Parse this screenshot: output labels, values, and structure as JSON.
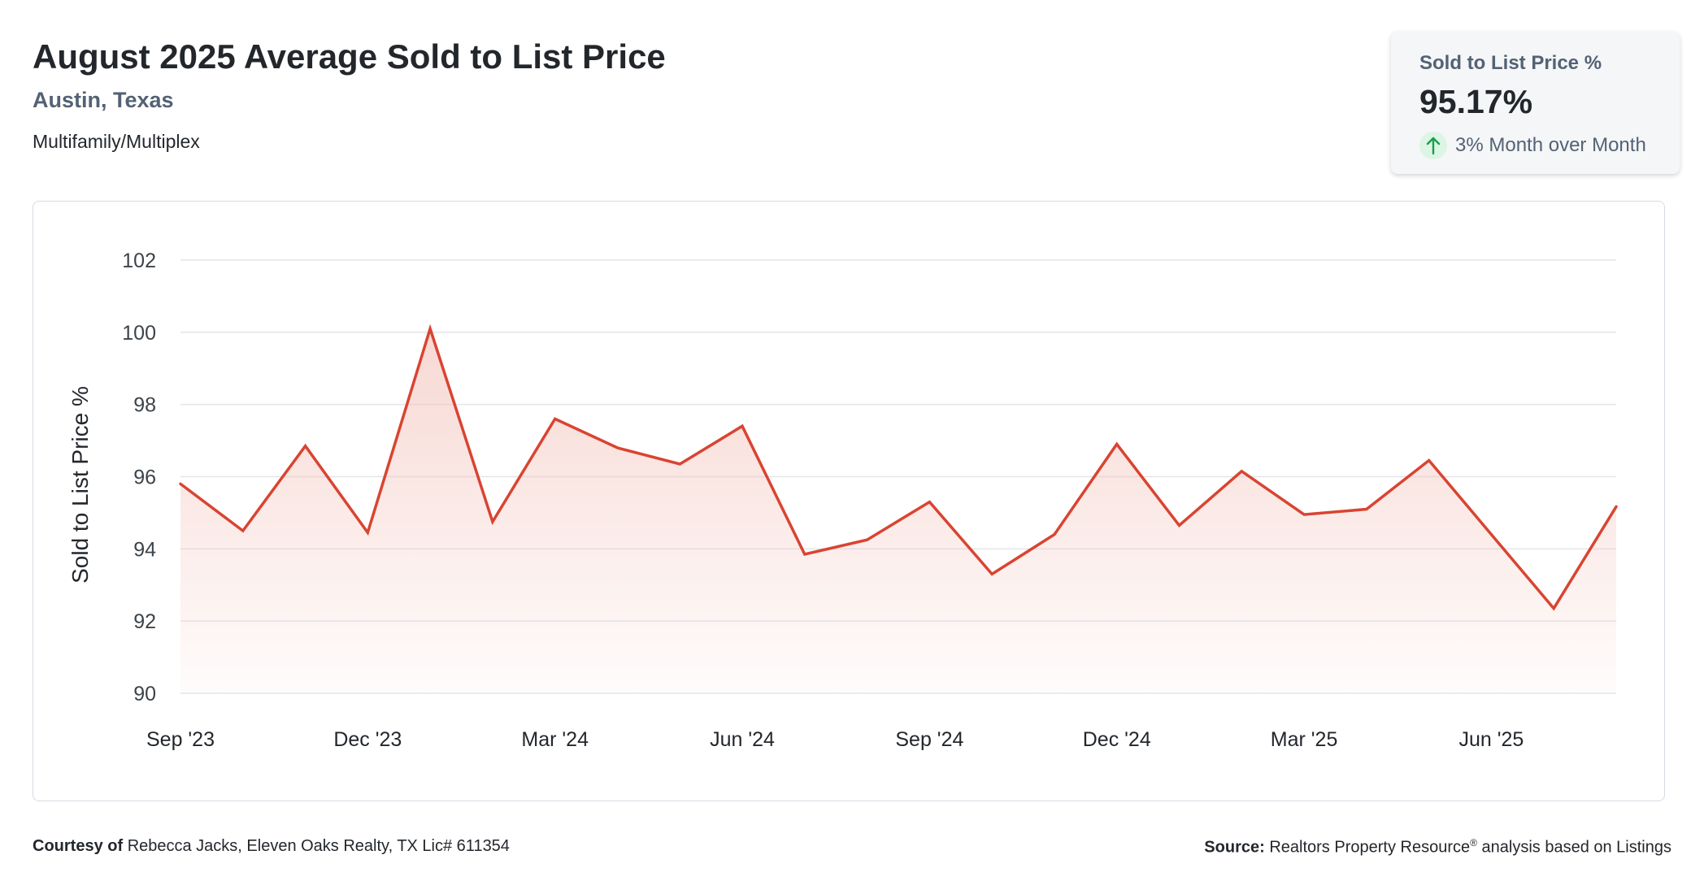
{
  "header": {
    "title": "August 2025 Average Sold to List Price",
    "location": "Austin, Texas",
    "property_type": "Multifamily/Multiplex"
  },
  "stat_card": {
    "label": "Sold to List Price %",
    "value": "95.17%",
    "change": "3% Month over Month",
    "trend_icon": "arrow-up-icon",
    "trend_color": "#1a9e4b"
  },
  "footer": {
    "courtesy_label": "Courtesy of",
    "courtesy_text": "Rebecca Jacks, Eleven Oaks Realty, TX Lic# 611354",
    "source_label": "Source:",
    "source_text_pre": "Realtors Property Resource",
    "source_sup": "®",
    "source_text_post": "analysis based on Listings"
  },
  "chart_data": {
    "type": "area",
    "ylabel": "Sold to List Price %",
    "xlabel": "",
    "ylim": [
      90,
      102
    ],
    "y_ticks": [
      90,
      92,
      94,
      96,
      98,
      100,
      102
    ],
    "x_tick_labels": [
      "Sep '23",
      "Dec '23",
      "Mar '24",
      "Jun '24",
      "Sep '24",
      "Dec '24",
      "Mar '25",
      "Jun '25"
    ],
    "x_tick_indices": [
      0,
      3,
      6,
      9,
      12,
      15,
      18,
      21
    ],
    "grid": true,
    "line_color": "#d94431",
    "fill_color": "#f3c3bb",
    "x": [
      "Sep '23",
      "Oct '23",
      "Nov '23",
      "Dec '23",
      "Jan '24",
      "Feb '24",
      "Mar '24",
      "Apr '24",
      "May '24",
      "Jun '24",
      "Jul '24",
      "Aug '24",
      "Sep '24",
      "Oct '24",
      "Nov '24",
      "Dec '24",
      "Jan '25",
      "Feb '25",
      "Mar '25",
      "Apr '25",
      "May '25",
      "Jun '25",
      "Jul '25",
      "Aug '25"
    ],
    "values": [
      95.8,
      94.5,
      96.85,
      94.45,
      100.1,
      94.75,
      97.6,
      96.8,
      96.35,
      97.4,
      93.85,
      94.25,
      95.3,
      93.3,
      94.4,
      96.9,
      94.65,
      96.15,
      94.95,
      95.1,
      96.45,
      94.4,
      92.35,
      95.17
    ]
  }
}
